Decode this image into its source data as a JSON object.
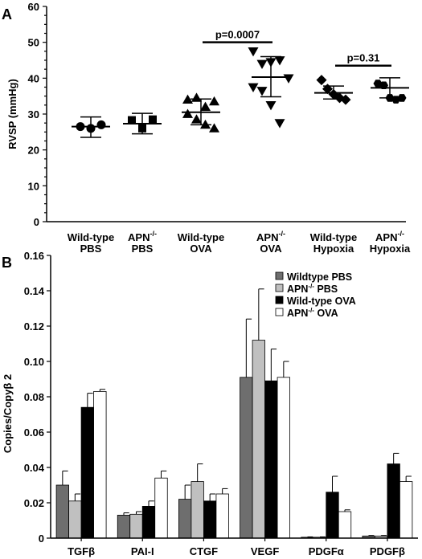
{
  "chart_data": [
    {
      "type": "scatter",
      "panel_label": "A",
      "ylabel": "RVSP (mmHg)",
      "ylim": [
        0,
        60
      ],
      "yticks": [
        "0",
        "10",
        "20",
        "30",
        "40",
        "50",
        "60"
      ],
      "groups": [
        {
          "label_top": "Wild-type",
          "label_bottom": "PBS",
          "marker": "circle",
          "values": [
            26.5,
            26.0,
            27.0
          ],
          "mean": 26.5,
          "sd_low": 23.5,
          "sd_high": 29.2
        },
        {
          "label_top": "APN",
          "label_sup": "-/-",
          "label_bottom": "PBS",
          "marker": "square",
          "values": [
            28.3,
            26.0,
            28.5
          ],
          "mean": 27.3,
          "sd_low": 24.5,
          "sd_high": 30.2
        },
        {
          "label_top": "Wild-type",
          "label_bottom": "OVA",
          "marker": "triangle-up",
          "values": [
            34.0,
            34.5,
            32.0,
            33.5,
            30.0,
            28.5,
            27.0,
            26.0
          ],
          "mean": 30.5,
          "sd_low": 27.0,
          "sd_high": 34.2
        },
        {
          "label_top": "APN",
          "label_sup": "-/-",
          "label_bottom": "OVA",
          "marker": "triangle-down",
          "values": [
            47.5,
            44.0,
            44.5,
            45.0,
            40.0,
            37.5,
            36.5,
            32.5,
            27.5
          ],
          "mean": 40.3,
          "sd_low": 34.8,
          "sd_high": 46.0
        },
        {
          "label_top": "Wild-type",
          "label_bottom": "Hypoxia",
          "marker": "diamond",
          "values": [
            39.5,
            37.0,
            35.5,
            34.5,
            34.0
          ],
          "mean": 35.9,
          "sd_low": 34.2,
          "sd_high": 37.8
        },
        {
          "label_top": "APN",
          "label_sup": "-/-",
          "label_bottom": "Hypoxia",
          "marker": "hexagon",
          "values": [
            38.5,
            38.0,
            34.5,
            34.0,
            34.5
          ],
          "mean": 37.3,
          "sd_low": 34.5,
          "sd_high": 40.1
        }
      ],
      "comparisons": [
        {
          "label": "p=0.0007",
          "from_group": 2,
          "to_group": 3,
          "y": 50.0
        },
        {
          "label": "p=0.31",
          "from_group": 4,
          "to_group": 5,
          "y": 43.5
        }
      ]
    },
    {
      "type": "bar",
      "panel_label": "B",
      "ylabel": "Copies/Copyβ 2",
      "ylim": [
        0,
        0.16
      ],
      "yticks": [
        "0",
        "0.02",
        "0.04",
        "0.06",
        "0.08",
        "0.10",
        "0.12",
        "0.14",
        "0.16"
      ],
      "categories": [
        "TGFβ",
        "PAI-I",
        "CTGF",
        "VEGF",
        "PDGFα",
        "PDGFβ"
      ],
      "legend_position": "top-right",
      "series": [
        {
          "name": "Wildtype PBS",
          "name_base": "Wildtype PBS",
          "name_sup": "",
          "name_tail": "",
          "color": "#6e6e6e",
          "values": [
            0.03,
            0.013,
            0.022,
            0.091,
            0.0005,
            0.0012
          ],
          "errors": [
            0.008,
            0.0013,
            0.008,
            0.033,
            0.0002,
            0.0003
          ]
        },
        {
          "name": "APN-/- PBS",
          "name_base": "APN",
          "name_sup": "-/-",
          "name_tail": " PBS",
          "color": "#c0c0c0",
          "values": [
            0.021,
            0.0135,
            0.032,
            0.112,
            0.0005,
            0.0012
          ],
          "errors": [
            0.004,
            0.0015,
            0.01,
            0.029,
            0.0002,
            0.0003
          ]
        },
        {
          "name": "Wild-type OVA",
          "name_base": "Wild-type OVA",
          "name_sup": "",
          "name_tail": "",
          "color": "#000000",
          "values": [
            0.074,
            0.018,
            0.021,
            0.089,
            0.026,
            0.042
          ],
          "errors": [
            0.008,
            0.003,
            0.004,
            0.018,
            0.009,
            0.006
          ]
        },
        {
          "name": "APN-/- OVA",
          "name_base": "APN",
          "name_sup": "-/-",
          "name_tail": " OVA",
          "color": "#ffffff",
          "values": [
            0.083,
            0.034,
            0.025,
            0.091,
            0.015,
            0.032
          ],
          "errors": [
            0.0012,
            0.004,
            0.003,
            0.009,
            0.001,
            0.003
          ]
        }
      ]
    }
  ]
}
